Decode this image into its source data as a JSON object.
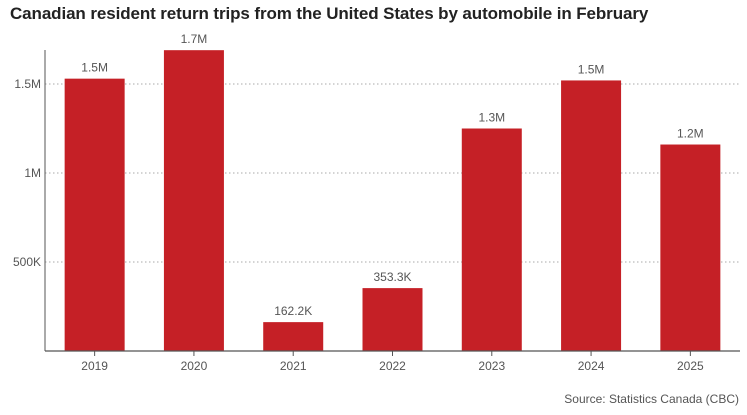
{
  "chart_data": {
    "type": "bar",
    "title": "Canadian resident return trips from the United States by automobile in February",
    "categories": [
      "2019",
      "2020",
      "2021",
      "2022",
      "2023",
      "2024",
      "2025"
    ],
    "values": [
      1530000,
      1690000,
      162200,
      353300,
      1250000,
      1520000,
      1160000
    ],
    "data_labels": [
      "1.5M",
      "1.7M",
      "162.2K",
      "353.3K",
      "1.3M",
      "1.5M",
      "1.2M"
    ],
    "yticks": [
      {
        "value": 500000,
        "label": "500K"
      },
      {
        "value": 1000000,
        "label": "1M"
      },
      {
        "value": 1500000,
        "label": "1.5M"
      }
    ],
    "ylim": [
      0,
      1700000
    ],
    "grid": "horizontal-dotted",
    "legend": "none",
    "xlabel": "",
    "ylabel": ""
  },
  "source": "Source: Statistics Canada (CBC)",
  "colors": {
    "bar": "#c52026",
    "grid": "#aaaaaa",
    "axis": "#555555",
    "text": "#555555"
  }
}
